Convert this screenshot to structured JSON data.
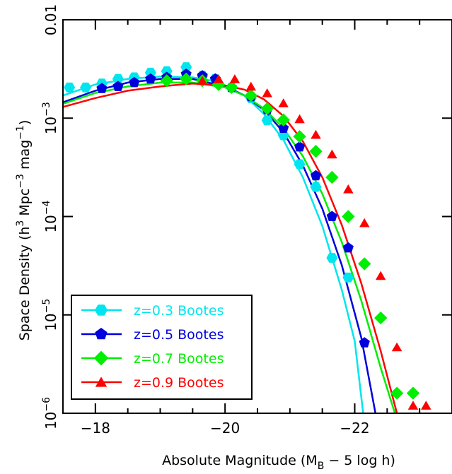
{
  "chart_data": {
    "type": "scatter",
    "xlabel": {
      "pre": "Absolute Magnitude (M",
      "sub": "B",
      "post": " − 5 log h)"
    },
    "ylabel": {
      "pre": "Space Density (h",
      "sup1": "3",
      "mid": " Mpc",
      "sup2": "−3",
      "mid2": " mag",
      "sup3": "−1",
      "post": ")"
    },
    "xlim": [
      -17.5,
      -23.5
    ],
    "ylim": [
      1e-06,
      0.01
    ],
    "yscale": "log",
    "x_ticks": [
      -18,
      -20,
      -22
    ],
    "x_tick_labels": [
      "−18",
      "−20",
      "−22"
    ],
    "y_ticks": [
      1e-06,
      1e-05,
      0.0001,
      0.001,
      0.01
    ],
    "y_tick_labels": [
      {
        "base": "10",
        "exp": "−6"
      },
      {
        "base": "10",
        "exp": "−5"
      },
      {
        "base": "10",
        "exp": "−4"
      },
      {
        "base": "10",
        "exp": "−3"
      },
      {
        "base": "0.01",
        "exp": ""
      }
    ],
    "legend_position": "bottom-left",
    "series": [
      {
        "name": "z=0.3 Bootes",
        "color": "#00e5ee",
        "marker": "hexagon",
        "points": [
          [
            -17.6,
            0.00205
          ],
          [
            -17.85,
            0.00205
          ],
          [
            -18.1,
            0.00225
          ],
          [
            -18.35,
            0.0025
          ],
          [
            -18.6,
            0.0026
          ],
          [
            -18.85,
            0.0029
          ],
          [
            -19.1,
            0.003
          ],
          [
            -19.4,
            0.0033
          ],
          [
            -19.65,
            0.0027
          ],
          [
            -19.85,
            0.0025
          ],
          [
            -20.1,
            0.00205
          ],
          [
            -20.4,
            0.0016
          ],
          [
            -20.65,
            0.00095
          ],
          [
            -20.9,
            0.00067
          ],
          [
            -21.15,
            0.00034
          ],
          [
            -21.4,
            0.0002
          ],
          [
            -21.65,
            3.8e-05
          ],
          [
            -21.9,
            2.4e-05
          ]
        ],
        "curve": [
          [
            -17.5,
            0.0017
          ],
          [
            -18.0,
            0.0022
          ],
          [
            -18.5,
            0.0025
          ],
          [
            -19.0,
            0.00265
          ],
          [
            -19.5,
            0.0026
          ],
          [
            -19.8,
            0.0024
          ],
          [
            -20.0,
            0.00215
          ],
          [
            -20.3,
            0.0017
          ],
          [
            -20.6,
            0.0011
          ],
          [
            -20.9,
            0.0006
          ],
          [
            -21.2,
            0.00025
          ],
          [
            -21.5,
            8e-05
          ],
          [
            -21.8,
            1.8e-05
          ],
          [
            -22.0,
            5.4e-06
          ],
          [
            -22.13,
            1e-06
          ]
        ]
      },
      {
        "name": "z=0.5 Bootes",
        "color": "#0000dd",
        "marker": "pentagon",
        "points": [
          [
            -18.1,
            0.002
          ],
          [
            -18.35,
            0.0021
          ],
          [
            -18.6,
            0.0023
          ],
          [
            -18.85,
            0.0025
          ],
          [
            -19.1,
            0.0026
          ],
          [
            -19.4,
            0.0028
          ],
          [
            -19.65,
            0.0027
          ],
          [
            -19.85,
            0.0025
          ],
          [
            -20.1,
            0.00205
          ],
          [
            -20.4,
            0.00165
          ],
          [
            -20.65,
            0.00122
          ],
          [
            -20.9,
            0.00079
          ],
          [
            -21.15,
            0.00051
          ],
          [
            -21.4,
            0.00026
          ],
          [
            -21.65,
            0.0001
          ],
          [
            -21.9,
            4.8e-05
          ],
          [
            -22.15,
            5.2e-06
          ]
        ],
        "curve": [
          [
            -17.5,
            0.00145
          ],
          [
            -18.0,
            0.0019
          ],
          [
            -18.5,
            0.0023
          ],
          [
            -19.0,
            0.0025
          ],
          [
            -19.5,
            0.0025
          ],
          [
            -20.0,
            0.0021
          ],
          [
            -20.3,
            0.0017
          ],
          [
            -20.6,
            0.00121
          ],
          [
            -20.9,
            0.00072
          ],
          [
            -21.2,
            0.00033
          ],
          [
            -21.5,
            0.00012
          ],
          [
            -21.8,
            3.2e-05
          ],
          [
            -22.1,
            5.9e-06
          ],
          [
            -22.32,
            1e-06
          ]
        ]
      },
      {
        "name": "z=0.7 Bootes",
        "color": "#00ee00",
        "marker": "diamond",
        "points": [
          [
            -19.1,
            0.0024
          ],
          [
            -19.4,
            0.0025
          ],
          [
            -19.65,
            0.0024
          ],
          [
            -19.9,
            0.0022
          ],
          [
            -20.1,
            0.00205
          ],
          [
            -20.4,
            0.0017
          ],
          [
            -20.65,
            0.00125
          ],
          [
            -20.9,
            0.00096
          ],
          [
            -21.15,
            0.00065
          ],
          [
            -21.4,
            0.00046
          ],
          [
            -21.65,
            0.00025
          ],
          [
            -21.9,
            0.0001
          ],
          [
            -22.15,
            3.3e-05
          ],
          [
            -22.4,
            9.3e-06
          ],
          [
            -22.65,
            1.6e-06
          ],
          [
            -22.9,
            1.6e-06
          ]
        ],
        "curve": [
          [
            -17.5,
            0.0014
          ],
          [
            -18.0,
            0.0018
          ],
          [
            -18.5,
            0.0021
          ],
          [
            -19.0,
            0.0023
          ],
          [
            -19.5,
            0.0023
          ],
          [
            -20.0,
            0.00205
          ],
          [
            -20.3,
            0.0017
          ],
          [
            -20.6,
            0.00125
          ],
          [
            -20.9,
            0.00079
          ],
          [
            -21.2,
            0.00041
          ],
          [
            -21.5,
            0.00017
          ],
          [
            -21.8,
            5.5e-05
          ],
          [
            -22.1,
            1.4e-05
          ],
          [
            -22.4,
            2.9e-06
          ],
          [
            -22.62,
            1e-06
          ]
        ]
      },
      {
        "name": "z=0.9 Bootes",
        "color": "#ff0000",
        "marker": "triangle",
        "points": [
          [
            -19.65,
            0.0024
          ],
          [
            -19.9,
            0.0025
          ],
          [
            -20.15,
            0.0025
          ],
          [
            -20.4,
            0.0021
          ],
          [
            -20.65,
            0.0018
          ],
          [
            -20.9,
            0.00142
          ],
          [
            -21.15,
            0.00098
          ],
          [
            -21.4,
            0.00068
          ],
          [
            -21.65,
            0.00043
          ],
          [
            -21.9,
            0.00019
          ],
          [
            -22.15,
            8.6e-05
          ],
          [
            -22.4,
            2.5e-05
          ],
          [
            -22.65,
            4.7e-06
          ],
          [
            -22.9,
            1.2e-06
          ],
          [
            -23.1,
            1.2e-06
          ]
        ],
        "curve": [
          [
            -17.5,
            0.0013
          ],
          [
            -18.0,
            0.0016
          ],
          [
            -18.5,
            0.0019
          ],
          [
            -19.0,
            0.0021
          ],
          [
            -19.5,
            0.00225
          ],
          [
            -20.0,
            0.00215
          ],
          [
            -20.3,
            0.00195
          ],
          [
            -20.6,
            0.00155
          ],
          [
            -20.9,
            0.00105
          ],
          [
            -21.2,
            0.00058
          ],
          [
            -21.5,
            0.00025
          ],
          [
            -21.8,
            8.2e-05
          ],
          [
            -22.1,
            2.1e-05
          ],
          [
            -22.4,
            4.3e-06
          ],
          [
            -22.65,
            1e-06
          ]
        ]
      }
    ]
  }
}
